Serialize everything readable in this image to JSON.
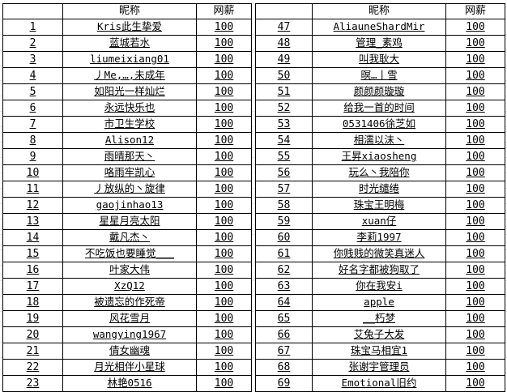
{
  "headers": {
    "index": "",
    "nickname": "昵称",
    "salary": "网薪"
  },
  "left_rows": [
    [
      "1",
      "Kris此生挚爱",
      "100"
    ],
    [
      "2",
      "蓝城若水",
      "100"
    ],
    [
      "3",
      "liumeixiang01",
      "100"
    ],
    [
      "4",
      "丿Me,…,未成年",
      "100"
    ],
    [
      "5",
      "如阳光一样灿烂",
      "100"
    ],
    [
      "6",
      "永远快乐也",
      "100"
    ],
    [
      "7",
      "市卫生学校",
      "100"
    ],
    [
      "8",
      "Alison12",
      "100"
    ],
    [
      "9",
      "雨晴那天丶",
      "100"
    ],
    [
      "10",
      "咯雨牢凯心",
      "100"
    ],
    [
      "11",
      "丿放纵的丶旋律",
      "100"
    ],
    [
      "12",
      "gaojinhao13",
      "100"
    ],
    [
      "13",
      "星星月亮太阳",
      "100"
    ],
    [
      "14",
      "戴凡杰丶",
      "100"
    ],
    [
      "15",
      "不吃饭也要睡觉___",
      "100"
    ],
    [
      "16",
      "叶家大伟",
      "100"
    ],
    [
      "17",
      "XzQ12",
      "100"
    ],
    [
      "18",
      "被遗忘的作死帝",
      "100"
    ],
    [
      "19",
      "风花雪月",
      "100"
    ],
    [
      "20",
      "wangying1967",
      "100"
    ],
    [
      "21",
      "倩女幽魂",
      "100"
    ],
    [
      "22",
      "月光相伴小星球",
      "100"
    ],
    [
      "23",
      "林艳0516",
      "100"
    ]
  ],
  "right_rows": [
    [
      "47",
      "AliauneShardMir",
      "100"
    ],
    [
      "48",
      "管理_素鸡",
      "100"
    ],
    [
      "49",
      "叫我耿大",
      "100"
    ],
    [
      "50",
      "暝…丨雪",
      "100"
    ],
    [
      "51",
      "颜颜颜璇璇",
      "100"
    ],
    [
      "52",
      "给我一首的时间",
      "100"
    ],
    [
      "53",
      "0531406徐芝如",
      "100"
    ],
    [
      "54",
      "相濡以沫丶",
      "100"
    ],
    [
      "55",
      "王昇xiaosheng",
      "100"
    ],
    [
      "56",
      "玩么丶我陪你",
      "100"
    ],
    [
      "57",
      "时光缱绻",
      "100"
    ],
    [
      "58",
      "珠宝王明梅",
      "100"
    ],
    [
      "59",
      "xuan仔",
      "100"
    ],
    [
      "60",
      "李莉1997",
      "100"
    ],
    [
      "61",
      "你贱贱的微笑真迷人",
      "100"
    ],
    [
      "62",
      "好名字都被狗取了",
      "100"
    ],
    [
      "63",
      "你在我安i",
      "100"
    ],
    [
      "64",
      "apple",
      "100"
    ],
    [
      "65",
      "__朽梦",
      "100"
    ],
    [
      "66",
      "艾兔子大发",
      "100"
    ],
    [
      "67",
      "珠宝马相宜1",
      "100"
    ],
    [
      "68",
      "张谢宇管理员",
      "100"
    ],
    [
      "69",
      "Emotional旧约",
      "100"
    ]
  ]
}
